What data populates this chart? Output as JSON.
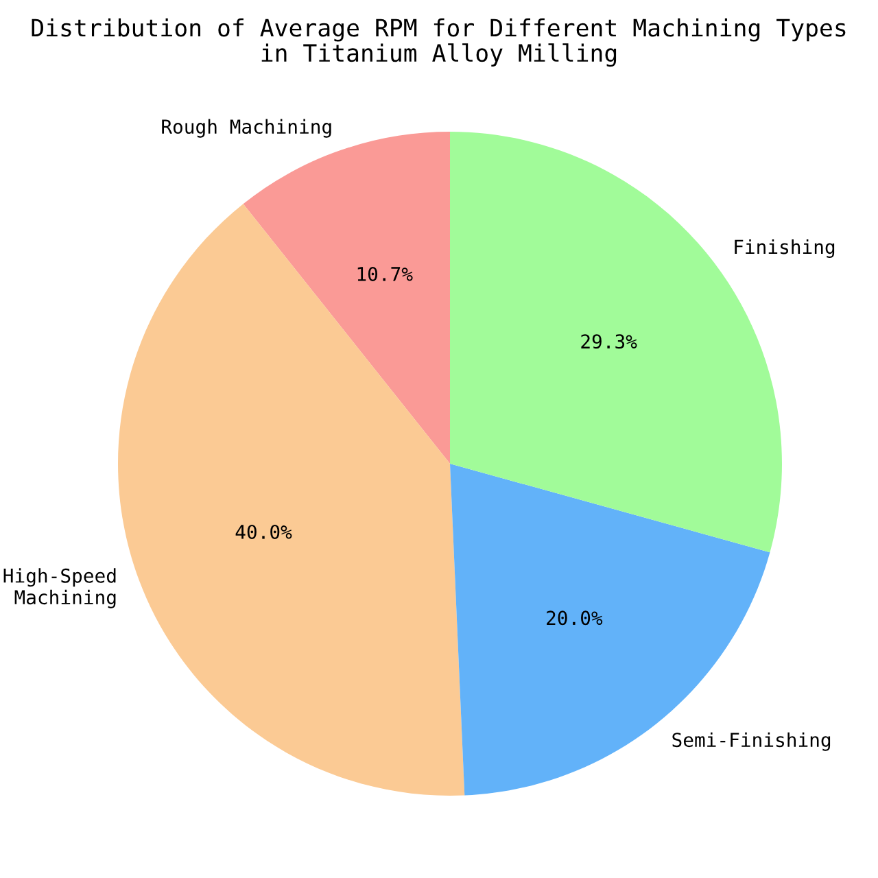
{
  "chart_data": {
    "type": "pie",
    "title": "Distribution of Average RPM for Different Machining Types\nin Titanium Alloy Milling",
    "categories": [
      "Rough Machining",
      "High-Speed\nMachining",
      "Semi-Finishing",
      "Finishing"
    ],
    "values": [
      10.7,
      40.0,
      20.0,
      29.3
    ],
    "value_labels": [
      "10.7%",
      "40.0%",
      "20.0%",
      "29.3%"
    ],
    "colors": [
      "#fa9a96",
      "#fbca94",
      "#62b2f9",
      "#a1fb99"
    ]
  }
}
